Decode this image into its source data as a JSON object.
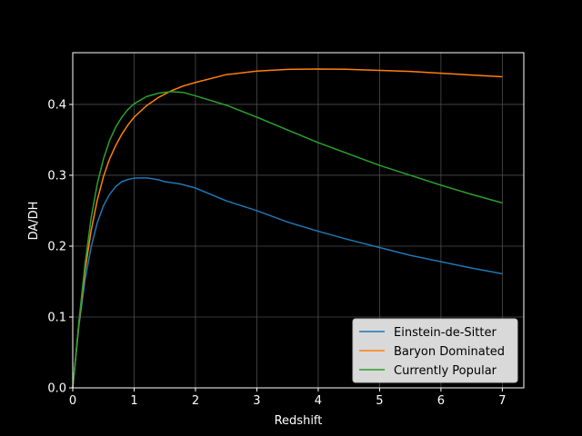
{
  "chart_data": {
    "type": "line",
    "title": "",
    "xlabel": "Redshift",
    "ylabel": "DA/DH",
    "xlim": [
      0,
      7.35
    ],
    "ylim": [
      0,
      0.473
    ],
    "xticks": [
      0,
      1,
      2,
      3,
      4,
      5,
      6,
      7
    ],
    "yticks": [
      0.0,
      0.1,
      0.2,
      0.3,
      0.4
    ],
    "xtick_labels": [
      "0",
      "1",
      "2",
      "3",
      "4",
      "5",
      "6",
      "7"
    ],
    "ytick_labels": [
      "0.0",
      "0.1",
      "0.2",
      "0.3",
      "0.4"
    ],
    "grid": true,
    "legend_position": "lower-right",
    "colors": {
      "background": "#000000",
      "axes": "#ffffff",
      "grid": "#4d4d4d",
      "legend_bg": "#d9d9d9"
    },
    "series": [
      {
        "name": "Einstein-de-Sitter",
        "color": "#1f77b4",
        "x": [
          0,
          0.1,
          0.2,
          0.3,
          0.4,
          0.5,
          0.6,
          0.7,
          0.8,
          0.9,
          1.0,
          1.1,
          1.2,
          1.3,
          1.4,
          1.5,
          1.75,
          2.0,
          2.5,
          3.0,
          3.5,
          4.0,
          4.5,
          5.0,
          5.5,
          6.0,
          6.5,
          7.0
        ],
        "values": [
          0,
          0.087,
          0.152,
          0.199,
          0.233,
          0.257,
          0.273,
          0.284,
          0.291,
          0.294,
          0.296,
          0.2963,
          0.2962,
          0.2952,
          0.2935,
          0.291,
          0.2878,
          0.282,
          0.264,
          0.25,
          0.234,
          0.221,
          0.209,
          0.198,
          0.187,
          0.178,
          0.169,
          0.161
        ]
      },
      {
        "name": "Baryon Dominated",
        "color": "#ff7f0e",
        "x": [
          0,
          0.1,
          0.2,
          0.3,
          0.4,
          0.5,
          0.6,
          0.7,
          0.8,
          0.9,
          1.0,
          1.2,
          1.4,
          1.6,
          1.8,
          2.0,
          2.5,
          3.0,
          3.5,
          4.0,
          4.5,
          5.0,
          5.5,
          6.0,
          6.5,
          7.0
        ],
        "values": [
          0,
          0.09,
          0.165,
          0.222,
          0.265,
          0.298,
          0.323,
          0.342,
          0.358,
          0.371,
          0.382,
          0.398,
          0.41,
          0.419,
          0.426,
          0.431,
          0.442,
          0.447,
          0.4495,
          0.45,
          0.4495,
          0.448,
          0.4465,
          0.444,
          0.4415,
          0.439
        ]
      },
      {
        "name": "Currently Popular",
        "color": "#2ca02c",
        "x": [
          0,
          0.1,
          0.2,
          0.3,
          0.4,
          0.5,
          0.6,
          0.7,
          0.8,
          0.9,
          1.0,
          1.2,
          1.4,
          1.6,
          1.8,
          2.0,
          2.5,
          3.0,
          3.5,
          4.0,
          4.5,
          5.0,
          5.5,
          6.0,
          6.5,
          7.0
        ],
        "values": [
          0,
          0.093,
          0.175,
          0.24,
          0.288,
          0.323,
          0.349,
          0.368,
          0.382,
          0.393,
          0.401,
          0.411,
          0.416,
          0.418,
          0.417,
          0.412,
          0.399,
          0.382,
          0.364,
          0.346,
          0.33,
          0.314,
          0.3,
          0.286,
          0.273,
          0.261
        ]
      }
    ]
  }
}
